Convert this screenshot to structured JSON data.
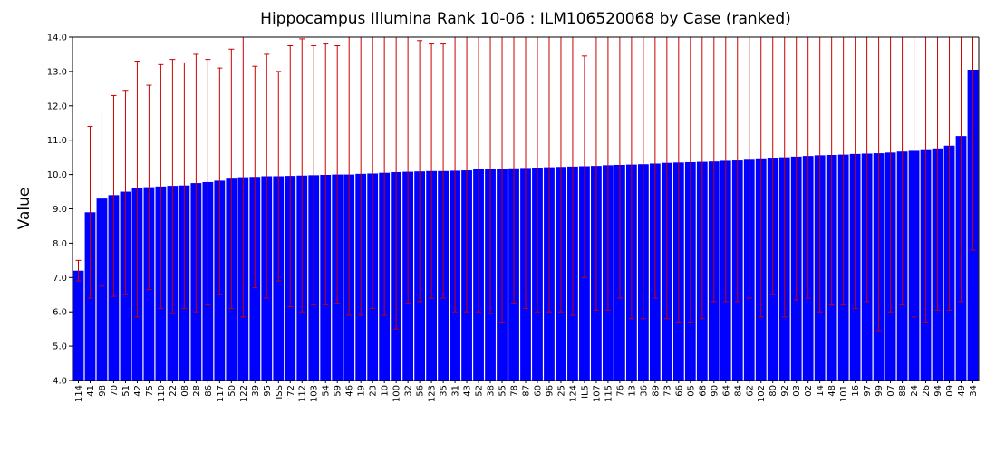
{
  "chart_data": {
    "type": "bar",
    "title": "Hippocampus Illumina Rank 10-06 : ILM106520068 by Case (ranked)",
    "xlabel": "",
    "ylabel": "Value",
    "ylim": [
      4.0,
      14.0
    ],
    "yticks": [
      "4.0",
      "5.0",
      "6.0",
      "7.0",
      "8.0",
      "9.0",
      "10.0",
      "11.0",
      "12.0",
      "13.0",
      "14.0"
    ],
    "grid": false,
    "legend": "none",
    "bar_color": "#0000ff",
    "error_color": "#cc0000",
    "categories": [
      "114",
      "41",
      "98",
      "70",
      "51",
      "42",
      "75",
      "110",
      "22",
      "08",
      "28",
      "86",
      "117",
      "50",
      "122",
      "39",
      "95",
      "ISS",
      "72",
      "112",
      "103",
      "54",
      "59",
      "46",
      "19",
      "23",
      "10",
      "100",
      "32",
      "56",
      "123",
      "35",
      "31",
      "43",
      "52",
      "38",
      "55",
      "78",
      "87",
      "60",
      "96",
      "25",
      "124",
      "IL5",
      "107",
      "115",
      "76",
      "13",
      "36",
      "89",
      "73",
      "66",
      "05",
      "68",
      "90",
      "64",
      "84",
      "62",
      "102",
      "80",
      "92",
      "03",
      "02",
      "14",
      "48",
      "101",
      "16",
      "97",
      "99",
      "07",
      "88",
      "24",
      "26",
      "94",
      "09",
      "49",
      "34"
    ],
    "values": [
      7.2,
      8.9,
      9.3,
      9.4,
      9.5,
      9.6,
      9.63,
      9.65,
      9.67,
      9.68,
      9.75,
      9.78,
      9.82,
      9.88,
      9.92,
      9.93,
      9.95,
      9.95,
      9.96,
      9.97,
      9.98,
      9.99,
      10.0,
      10.0,
      10.02,
      10.03,
      10.05,
      10.07,
      10.08,
      10.09,
      10.1,
      10.1,
      10.11,
      10.12,
      10.15,
      10.16,
      10.17,
      10.18,
      10.19,
      10.2,
      10.21,
      10.22,
      10.23,
      10.24,
      10.25,
      10.27,
      10.28,
      10.29,
      10.3,
      10.32,
      10.34,
      10.35,
      10.36,
      10.37,
      10.38,
      10.4,
      10.41,
      10.43,
      10.47,
      10.49,
      10.5,
      10.52,
      10.54,
      10.56,
      10.57,
      10.58,
      10.6,
      10.61,
      10.62,
      10.64,
      10.67,
      10.69,
      10.71,
      10.76,
      10.84,
      11.12,
      13.05
    ],
    "error_high": [
      7.5,
      11.4,
      11.85,
      12.3,
      12.45,
      13.3,
      12.6,
      13.2,
      13.35,
      13.25,
      13.5,
      13.35,
      13.1,
      13.65,
      14.0,
      13.15,
      13.5,
      13.0,
      13.75,
      13.95,
      13.75,
      13.8,
      13.75,
      14.0,
      14.0,
      14.0,
      14.0,
      14.0,
      14.0,
      13.9,
      13.8,
      13.8,
      14.0,
      14.0,
      14.0,
      14.0,
      14.0,
      14.0,
      14.0,
      14.0,
      14.0,
      14.0,
      14.0,
      13.45,
      14.0,
      14.0,
      14.0,
      14.0,
      14.0,
      14.0,
      14.0,
      14.0,
      14.0,
      14.0,
      14.0,
      14.0,
      14.0,
      14.0,
      14.0,
      14.0,
      14.0,
      14.0,
      14.0,
      14.0,
      14.0,
      14.0,
      14.0,
      14.0,
      14.0,
      14.0,
      14.0,
      14.0,
      14.0,
      14.0,
      14.0,
      14.0,
      14.0
    ],
    "error_low": [
      6.9,
      6.4,
      6.75,
      6.45,
      6.5,
      5.85,
      6.65,
      6.1,
      5.95,
      6.1,
      6.0,
      6.2,
      6.5,
      6.1,
      5.85,
      6.7,
      6.4,
      6.9,
      6.15,
      6.0,
      6.2,
      6.2,
      6.25,
      5.9,
      5.9,
      6.1,
      5.9,
      5.5,
      6.25,
      6.3,
      6.4,
      6.4,
      6.0,
      6.0,
      6.0,
      5.95,
      5.7,
      6.25,
      6.1,
      6.0,
      6.0,
      6.0,
      5.9,
      7.0,
      6.05,
      6.05,
      6.4,
      5.8,
      5.8,
      6.4,
      5.8,
      5.7,
      5.7,
      5.8,
      6.3,
      6.3,
      6.3,
      6.4,
      5.85,
      6.5,
      5.85,
      6.35,
      6.4,
      6.0,
      6.2,
      6.2,
      6.1,
      6.3,
      5.45,
      6.0,
      6.2,
      5.85,
      5.7,
      6.05,
      6.05,
      6.3,
      7.8
    ]
  }
}
